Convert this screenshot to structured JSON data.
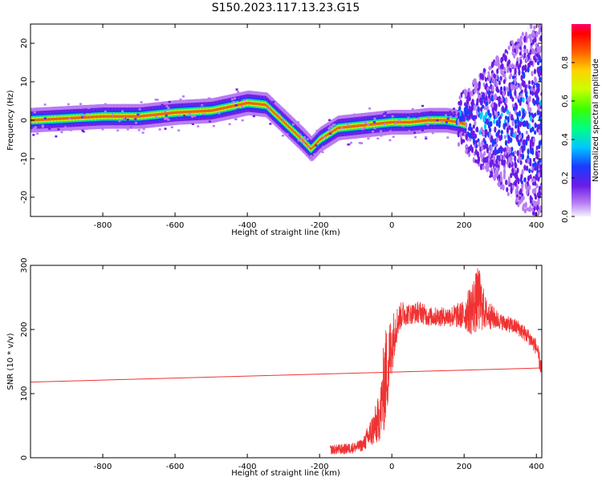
{
  "title": "S150.2023.117.13.23.G15",
  "chart_data": [
    {
      "type": "heatmap",
      "xlabel": "Height of straight line (km)",
      "ylabel": "Frequency (Hz)",
      "xlim": [
        -1000,
        415
      ],
      "ylim": [
        -25,
        25
      ],
      "xticks": [
        -800,
        -600,
        -400,
        -200,
        0,
        200,
        400
      ],
      "yticks": [
        20,
        10,
        0,
        -10,
        -20
      ],
      "colorbar": {
        "label": "Normalized spectral amplitude",
        "range": [
          0,
          1
        ],
        "ticks": [
          "0.0",
          "0.2",
          "0.4",
          "0.6",
          "0.8"
        ],
        "tick_values": [
          0,
          0.2,
          0.4,
          0.6,
          0.8
        ],
        "colormap": "rainbow"
      },
      "ridge": {
        "x": [
          -1000,
          -900,
          -800,
          -700,
          -600,
          -500,
          -450,
          -400,
          -350,
          -300,
          -250,
          -225,
          -200,
          -150,
          -100,
          -50,
          0,
          50,
          100,
          150,
          180,
          200
        ],
        "frequency": [
          0,
          0.5,
          1,
          1,
          2,
          2.5,
          3.5,
          4.5,
          4,
          -0.5,
          -5,
          -7.5,
          -5,
          -2,
          -1.5,
          -1,
          -0.5,
          -0.5,
          0,
          0,
          -0.5,
          -1
        ]
      },
      "noise_region": [
        180,
        415
      ],
      "grid": false
    },
    {
      "type": "line",
      "xlabel": "Height of straight line (km)",
      "ylabel": "SNR (10 * v/v)",
      "xlim": [
        -1000,
        415
      ],
      "ylim": [
        0,
        300
      ],
      "xticks": [
        -800,
        -600,
        -400,
        -200,
        0,
        200,
        400
      ],
      "yticks": [
        0,
        100,
        200,
        300
      ],
      "color": "#f03232",
      "series_points": {
        "x": [
          -1000,
          415
        ],
        "y": [
          118,
          140
        ]
      },
      "series_envelope": {
        "x": [
          -170,
          -130,
          -100,
          -80,
          -60,
          -40,
          -30,
          -20,
          -10,
          0,
          10,
          20,
          30,
          50,
          80,
          100,
          150,
          200,
          220,
          240,
          260,
          300,
          350,
          380,
          400,
          415
        ],
        "y_low": [
          5,
          5,
          8,
          10,
          15,
          20,
          30,
          40,
          80,
          130,
          170,
          195,
          205,
          208,
          210,
          205,
          205,
          200,
          190,
          195,
          200,
          200,
          190,
          175,
          160,
          120
        ],
        "y_high": [
          20,
          22,
          25,
          30,
          60,
          90,
          120,
          200,
          210,
          225,
          235,
          240,
          245,
          240,
          245,
          235,
          235,
          245,
          275,
          300,
          250,
          225,
          215,
          200,
          185,
          150
        ]
      },
      "grid": false
    }
  ]
}
